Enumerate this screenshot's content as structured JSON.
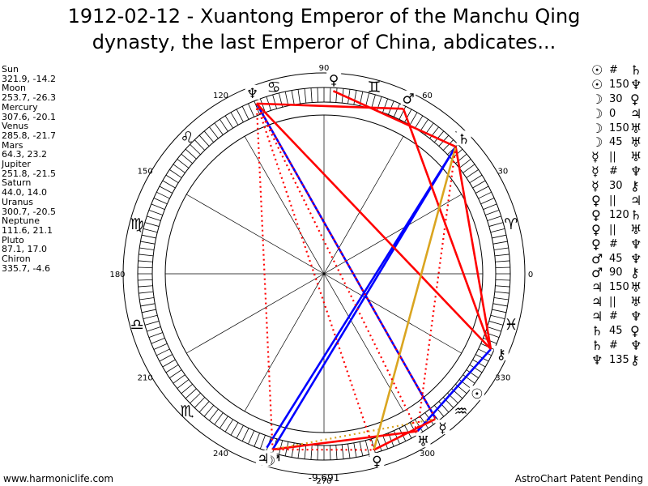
{
  "title": {
    "line1": "1912-02-12 - Xuantong Emperor of the Manchu Qing",
    "line2": "dynasty, the last Emperor of China, abdicates..."
  },
  "planets": [
    {
      "name": "Sun",
      "coords": "321.9, -14.2",
      "lon": 321.9,
      "glyph": "☉"
    },
    {
      "name": "Moon",
      "coords": "253.7, -26.3",
      "lon": 253.7,
      "glyph": "☽"
    },
    {
      "name": "Mercury",
      "coords": "307.6, -20.1",
      "lon": 307.6,
      "glyph": "☿"
    },
    {
      "name": "Venus",
      "coords": "285.8, -21.7",
      "lon": 285.8,
      "glyph": "♀"
    },
    {
      "name": "Mars",
      "coords": "64.3, 23.2",
      "lon": 64.3,
      "glyph": "♂"
    },
    {
      "name": "Jupiter",
      "coords": "251.8, -21.5",
      "lon": 251.8,
      "glyph": "♃"
    },
    {
      "name": "Saturn",
      "coords": "44.0, 14.0",
      "lon": 44.0,
      "glyph": "♄"
    },
    {
      "name": "Uranus",
      "coords": "300.7, -20.5",
      "lon": 300.7,
      "glyph": "♅"
    },
    {
      "name": "Neptune",
      "coords": "111.6, 21.1",
      "lon": 111.6,
      "glyph": "♆"
    },
    {
      "name": "Pluto",
      "coords": "87.1, 17.0",
      "lon": 87.1,
      "glyph": "♀"
    },
    {
      "name": "Chiron",
      "coords": "335.7, -4.6",
      "lon": 335.7,
      "glyph": "⚷"
    }
  ],
  "aspects": [
    {
      "p1": "☉",
      "symbol": "#",
      "p2": "♄"
    },
    {
      "p1": "☉",
      "symbol": "150",
      "p2": "♆"
    },
    {
      "p1": "☽",
      "symbol": "30",
      "p2": "♀"
    },
    {
      "p1": "☽",
      "symbol": "0",
      "p2": "♃"
    },
    {
      "p1": "☽",
      "symbol": "150",
      "p2": "♅"
    },
    {
      "p1": "☽",
      "symbol": "45",
      "p2": "♅"
    },
    {
      "p1": "☿",
      "symbol": "||",
      "p2": "♅"
    },
    {
      "p1": "☿",
      "symbol": "#",
      "p2": "♆"
    },
    {
      "p1": "☿",
      "symbol": "30",
      "p2": "⚷"
    },
    {
      "p1": "♀",
      "symbol": "||",
      "p2": "♃"
    },
    {
      "p1": "♀",
      "symbol": "120",
      "p2": "♄"
    },
    {
      "p1": "♀",
      "symbol": "||",
      "p2": "♅"
    },
    {
      "p1": "♀",
      "symbol": "#",
      "p2": "♆"
    },
    {
      "p1": "♂",
      "symbol": "45",
      "p2": "♆"
    },
    {
      "p1": "♂",
      "symbol": "90",
      "p2": "⚷"
    },
    {
      "p1": "♃",
      "symbol": "150",
      "p2": "♅"
    },
    {
      "p1": "♃",
      "symbol": "||",
      "p2": "♅"
    },
    {
      "p1": "♃",
      "symbol": "#",
      "p2": "♆"
    },
    {
      "p1": "♄",
      "symbol": "45",
      "p2": "♀"
    },
    {
      "p1": "♄",
      "symbol": "#",
      "p2": "♆"
    },
    {
      "p1": "♆",
      "symbol": "135",
      "p2": "⚷"
    }
  ],
  "wheel": {
    "degree_labels": [
      "0",
      "30",
      "60",
      "90",
      "120",
      "150",
      "180",
      "210",
      "240",
      "270",
      "300",
      "330"
    ],
    "zodiac_glyphs": [
      "♈",
      "♉",
      "♊",
      "♋",
      "♌",
      "♍",
      "♎",
      "♏",
      "♐",
      "♑",
      "♒",
      "♓"
    ],
    "bottom_value": "-9,691"
  },
  "chart_lines": [
    {
      "from": "Neptune",
      "to": "Mercury",
      "color": "#0000ff",
      "style": "solid"
    },
    {
      "from": "Moon",
      "to": "Saturn",
      "color": "#0000ff",
      "style": "solid"
    },
    {
      "from": "Jupiter",
      "to": "Saturn",
      "color": "#0000ff",
      "style": "solid"
    },
    {
      "from": "Chiron",
      "to": "Uranus",
      "color": "#0000ff",
      "style": "solid"
    },
    {
      "from": "Neptune",
      "to": "Chiron",
      "color": "#ff0000",
      "style": "solid"
    },
    {
      "from": "Saturn",
      "to": "Chiron",
      "color": "#ff0000",
      "style": "solid"
    },
    {
      "from": "Pluto",
      "to": "Saturn",
      "color": "#ff0000",
      "style": "solid"
    },
    {
      "from": "Mars",
      "to": "Neptune",
      "color": "#ff0000",
      "style": "solid"
    },
    {
      "from": "Mars",
      "to": "Chiron",
      "color": "#ff0000",
      "style": "solid"
    },
    {
      "from": "Venus",
      "to": "Mercury",
      "color": "#ff0000",
      "style": "solid"
    },
    {
      "from": "Moon",
      "to": "Uranus",
      "color": "#ff0000",
      "style": "solid"
    },
    {
      "from": "Saturn",
      "to": "Venus",
      "color": "#daa520",
      "style": "solid"
    },
    {
      "from": "Moon",
      "to": "Mercury",
      "color": "#daa520",
      "style": "dotted"
    },
    {
      "from": "Neptune",
      "to": "Moon",
      "color": "#ff0000",
      "style": "dotted"
    },
    {
      "from": "Neptune",
      "to": "Uranus",
      "color": "#ff0000",
      "style": "dotted"
    },
    {
      "from": "Neptune",
      "to": "Venus",
      "color": "#ff0000",
      "style": "dotted"
    },
    {
      "from": "Neptune",
      "to": "Mercury",
      "color": "#ff0000",
      "style": "dotted"
    },
    {
      "from": "Saturn",
      "to": "Uranus",
      "color": "#ff0000",
      "style": "dotted"
    },
    {
      "from": "Moon",
      "to": "Venus",
      "color": "#ff0000",
      "style": "dotted"
    }
  ],
  "footer": {
    "left": "www.harmoniclife.com",
    "right": "AstroChart Patent Pending"
  }
}
